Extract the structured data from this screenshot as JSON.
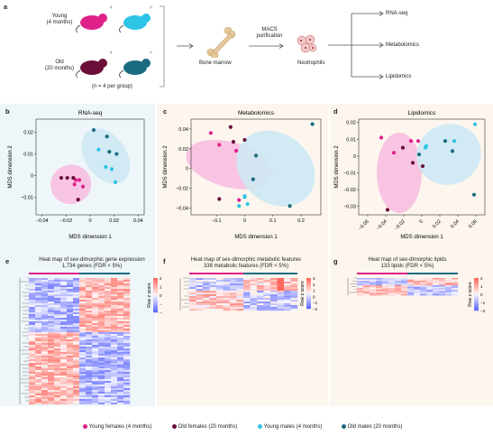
{
  "panel_labels": {
    "a": "a",
    "b": "b",
    "c": "c",
    "d": "d",
    "e": "e",
    "f": "f",
    "g": "g"
  },
  "colors": {
    "young_female": "#e0218a",
    "old_female": "#6b0f3a",
    "young_male": "#2ec4e6",
    "old_male": "#1a6b80",
    "female_ellipse": "#f7bfe0",
    "male_ellipse": "#cde9f3",
    "bg_b": "#eef6f9",
    "bg_c": "#fdf6ee",
    "bg_d": "#fdf6ee"
  },
  "schematic": {
    "young_label": "Young\n(4 months)",
    "young_label_line1": "Young",
    "young_label_line2": "(4 months)",
    "old_label_line1": "Old",
    "old_label_line2": "(20 months)",
    "female_symbol": "♀",
    "male_symbol": "♂",
    "n_label": "(n = 4 per group)",
    "bone_marrow": "Bone marrow",
    "macs_line1": "MACS",
    "macs_line2": "purification",
    "neutrophils": "Neutrophils",
    "outputs": [
      "RNA-seq",
      "Metabolomics",
      "Lipidomics"
    ]
  },
  "legend": [
    {
      "label": "Young females (4 months)",
      "color": "#e0218a"
    },
    {
      "label": "Old females (20 months)",
      "color": "#6b0f3a"
    },
    {
      "label": "Young males (4 months)",
      "color": "#2ec4e6"
    },
    {
      "label": "Old males (20 months)",
      "color": "#1a6b80"
    }
  ],
  "heatmaps": {
    "e": {
      "title": "Heat map of sex-dimorphic gene expression",
      "subtitle": "1,734 genes (FDR < 5%)",
      "scale_label": "Row z score",
      "ticks": [
        "2",
        "1",
        "0",
        "−1",
        "−2"
      ]
    },
    "f": {
      "title": "Heat map of sex-dimorphic metabolic features",
      "subtitle": "338 metabolic features (FDR < 5%)",
      "scale_label": "Row z score",
      "ticks": [
        "3",
        "2",
        "1",
        "0",
        "−1",
        "−2"
      ]
    },
    "g": {
      "title": "Heat map of sex-dimorphic lipids",
      "subtitle": "133 lipids (FDR < 5%)",
      "scale_label": "Row z score",
      "ticks": [
        "2",
        "1",
        "0",
        "−1",
        "−2"
      ]
    }
  },
  "chart_data": [
    {
      "type": "scatter",
      "panel": "b",
      "title": "RNA-seq",
      "xlabel": "MDS dimension 1",
      "ylabel": "MDS dimension 2",
      "xlim": [
        -0.045,
        0.045
      ],
      "ylim": [
        -0.018,
        0.026
      ],
      "xticks": [
        "−0.04",
        "−0.02",
        "0",
        "0.02",
        "0.04"
      ],
      "yticks": [
        "0.02",
        "0.01",
        "0",
        "−0.01"
      ],
      "xtick_values": [
        -0.04,
        -0.02,
        0,
        0.02,
        0.04
      ],
      "ytick_values": [
        0.02,
        0.01,
        0,
        -0.01
      ],
      "series": [
        {
          "group": "young_female",
          "points": [
            [
              -0.012,
              -0.002
            ],
            [
              -0.009,
              -0.002
            ],
            [
              -0.006,
              -0.005
            ],
            [
              -0.013,
              -0.004
            ]
          ]
        },
        {
          "group": "old_female",
          "points": [
            [
              -0.024,
              -0.001
            ],
            [
              -0.019,
              -0.001
            ],
            [
              -0.014,
              -0.001
            ],
            [
              -0.01,
              -0.011
            ]
          ]
        },
        {
          "group": "young_male",
          "points": [
            [
              0.007,
              0.012
            ],
            [
              0.013,
              0.004
            ],
            [
              0.021,
              -0.003
            ],
            [
              0.018,
              0.003
            ]
          ]
        },
        {
          "group": "old_male",
          "points": [
            [
              0.003,
              0.021
            ],
            [
              0.014,
              0.018
            ],
            [
              0.016,
              0.011
            ],
            [
              0.022,
              0.01
            ]
          ]
        }
      ]
    },
    {
      "type": "scatter",
      "panel": "c",
      "title": "Metabolomics",
      "xlabel": "MDS dimension 1",
      "ylabel": "MDS dimension 2",
      "xlim": [
        -0.19,
        0.27
      ],
      "ylim": [
        -0.047,
        0.05
      ],
      "xticks": [
        "−0.1",
        "0",
        "0.1",
        "0.2"
      ],
      "yticks": [
        "0.04",
        "0.02",
        "0",
        "−0.02",
        "−0.04"
      ],
      "xtick_values": [
        -0.1,
        0,
        0.1,
        0.2
      ],
      "ytick_values": [
        0.04,
        0.02,
        0,
        -0.02,
        -0.04
      ],
      "series": [
        {
          "group": "young_female",
          "points": [
            [
              -0.12,
              0.036
            ],
            [
              -0.09,
              0.024
            ],
            [
              -0.03,
              0.018
            ],
            [
              -0.02,
              -0.032
            ]
          ]
        },
        {
          "group": "old_female",
          "points": [
            [
              -0.05,
              0.042
            ],
            [
              -0.04,
              0.027
            ],
            [
              0.0,
              0.029
            ],
            [
              -0.09,
              -0.031
            ]
          ]
        },
        {
          "group": "young_male",
          "points": [
            [
              0.0,
              -0.028
            ],
            [
              0.01,
              -0.036
            ],
            [
              -0.02,
              -0.038
            ],
            [
              0.0,
              -0.029
            ]
          ]
        },
        {
          "group": "old_male",
          "points": [
            [
              0.24,
              0.045
            ],
            [
              0.04,
              0.013
            ],
            [
              0.03,
              -0.011
            ],
            [
              0.16,
              -0.038
            ]
          ]
        }
      ]
    },
    {
      "type": "scatter",
      "panel": "d",
      "title": "Lipidomics",
      "xlabel": "MDS dimension 1",
      "ylabel": "MDS dimension 2",
      "xlim": [
        -0.07,
        0.07
      ],
      "ylim": [
        -0.035,
        0.022
      ],
      "xticks": [
        "−0.06",
        "−0.04",
        "−0.02",
        "0",
        "0.02",
        "0.04",
        "0.06"
      ],
      "yticks": [
        "0.02",
        "0.01",
        "0",
        "−0.01",
        "−0.02",
        "−0.03"
      ],
      "xtick_values": [
        -0.06,
        -0.04,
        -0.02,
        0,
        0.02,
        0.04,
        0.06
      ],
      "ytick_values": [
        0.02,
        0.01,
        0,
        -0.01,
        -0.02,
        -0.03
      ],
      "series": [
        {
          "group": "young_female",
          "points": [
            [
              -0.045,
              0.011
            ],
            [
              -0.031,
              0.002
            ],
            [
              -0.012,
              0.009
            ],
            [
              -0.004,
              0.009
            ]
          ]
        },
        {
          "group": "old_female",
          "points": [
            [
              -0.038,
              -0.032
            ],
            [
              -0.021,
              0.005
            ],
            [
              -0.01,
              -0.004
            ],
            [
              0.001,
              -0.006
            ]
          ]
        },
        {
          "group": "young_male",
          "points": [
            [
              0.004,
              0.005
            ],
            [
              0.005,
              0.006
            ],
            [
              0.036,
              0.009
            ],
            [
              0.059,
              0.019
            ]
          ]
        },
        {
          "group": "old_male",
          "points": [
            [
              -0.003,
              0.001
            ],
            [
              0.026,
              0.009
            ],
            [
              0.034,
              0.003
            ],
            [
              0.058,
              -0.023
            ]
          ]
        }
      ]
    }
  ]
}
